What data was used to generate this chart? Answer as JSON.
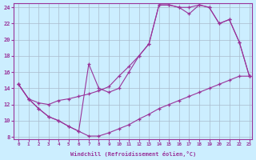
{
  "xlabel": "Windchill (Refroidissement éolien,°C)",
  "bg_color": "#cceeff",
  "grid_color": "#aabbcc",
  "line_color": "#993399",
  "xmin": 0,
  "xmax": 23,
  "ymin": 8,
  "ymax": 24,
  "yticks": [
    8,
    10,
    12,
    14,
    16,
    18,
    20,
    22,
    24
  ],
  "xticks": [
    0,
    1,
    2,
    3,
    4,
    5,
    6,
    7,
    8,
    9,
    10,
    11,
    12,
    13,
    14,
    15,
    16,
    17,
    18,
    19,
    20,
    21,
    22,
    23
  ],
  "curve1_x": [
    0,
    1,
    2,
    3,
    4,
    5,
    6,
    7,
    8,
    9,
    10,
    11,
    12,
    13,
    14,
    15,
    16,
    17,
    18,
    19,
    20,
    21,
    22,
    23
  ],
  "curve1_y": [
    14.5,
    12.7,
    12.2,
    12.0,
    12.5,
    12.7,
    13.0,
    13.3,
    13.7,
    14.2,
    15.5,
    16.7,
    18.0,
    19.5,
    24.3,
    24.3,
    24.0,
    24.0,
    24.3,
    24.0,
    22.0,
    22.5,
    19.7,
    15.5
  ],
  "curve2_x": [
    0,
    1,
    2,
    3,
    4,
    5,
    6,
    7,
    8,
    9,
    10,
    11,
    12,
    13,
    14,
    15,
    16,
    17,
    18,
    19,
    20,
    21,
    22,
    23
  ],
  "curve2_y": [
    14.5,
    12.7,
    11.5,
    10.5,
    10.0,
    9.3,
    8.7,
    8.1,
    8.1,
    8.5,
    9.0,
    9.5,
    10.2,
    10.8,
    11.5,
    12.0,
    12.5,
    13.0,
    13.5,
    14.0,
    14.5,
    15.0,
    15.5,
    15.5
  ],
  "curve3_x": [
    0,
    1,
    2,
    3,
    4,
    5,
    6,
    7,
    8,
    9,
    10,
    11,
    12,
    13,
    14,
    15,
    16,
    17,
    18,
    19,
    20,
    21,
    22,
    23
  ],
  "curve3_y": [
    14.5,
    12.7,
    11.5,
    10.5,
    10.0,
    9.3,
    8.7,
    17.0,
    14.0,
    13.5,
    14.0,
    16.0,
    18.0,
    19.5,
    24.3,
    24.3,
    24.0,
    23.2,
    24.3,
    24.0,
    22.0,
    22.5,
    19.7,
    15.5
  ]
}
